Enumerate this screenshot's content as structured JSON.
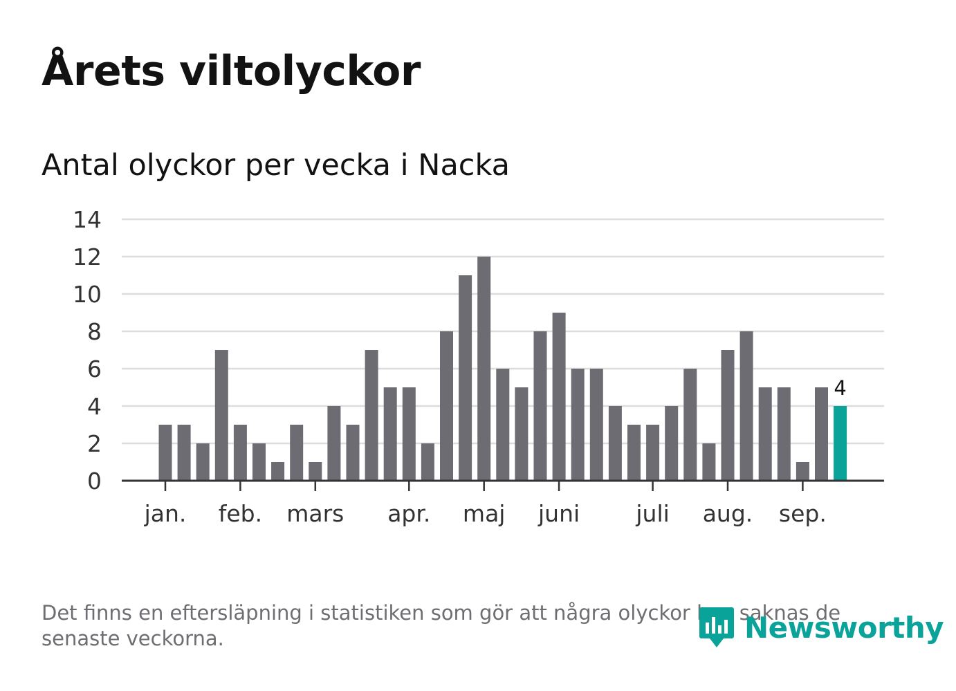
{
  "title": "Årets viltolyckor",
  "subtitle": "Antal olyckor per vecka i Nacka",
  "footnote": "Det finns en eftersläpning i statistiken som gör att några olyckor kan saknas de senaste veckorna.",
  "logo": {
    "text": "Newsworthy",
    "icon": "newsworthy-logo-icon"
  },
  "colors": {
    "bar": "#6d6c73",
    "highlight": "#0aa39a",
    "grid": "#dcdcdc",
    "axis": "#333333",
    "text": "#333333"
  },
  "chart_data": {
    "type": "bar",
    "title": "",
    "xlabel": "",
    "ylabel": "",
    "ylim": [
      0,
      14
    ],
    "yticks": [
      0,
      2,
      4,
      6,
      8,
      10,
      12,
      14
    ],
    "grid": true,
    "series": [
      {
        "values": [
          3,
          3,
          2,
          7,
          3,
          2,
          1,
          3,
          1,
          4,
          3,
          7,
          5,
          5,
          2,
          8,
          11,
          12,
          6,
          5,
          8,
          9,
          6,
          6,
          4,
          3,
          3,
          4,
          6,
          2,
          7,
          8,
          5,
          5,
          1,
          5,
          4
        ]
      }
    ],
    "week_start": 1,
    "month_labels": [
      {
        "label": "jan.",
        "at_week": 1
      },
      {
        "label": "feb.",
        "at_week": 5
      },
      {
        "label": "mars",
        "at_week": 9
      },
      {
        "label": "apr.",
        "at_week": 14
      },
      {
        "label": "maj",
        "at_week": 18
      },
      {
        "label": "juni",
        "at_week": 22
      },
      {
        "label": "juli",
        "at_week": 27
      },
      {
        "label": "aug.",
        "at_week": 31
      },
      {
        "label": "sep.",
        "at_week": 35
      }
    ],
    "highlight": {
      "last_bar": true,
      "label": "4"
    }
  }
}
